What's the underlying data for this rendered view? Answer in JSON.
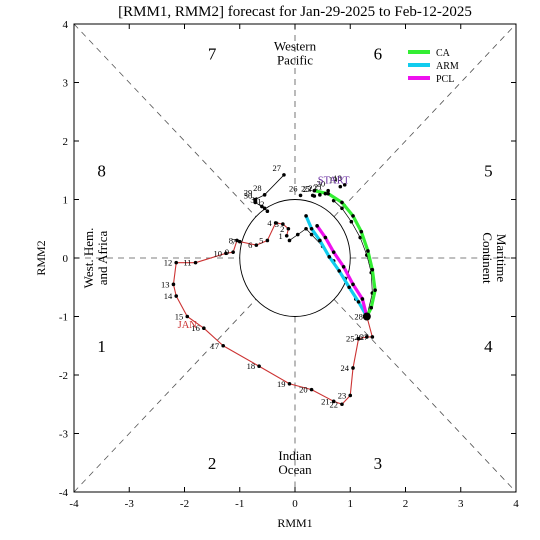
{
  "chart_data": {
    "type": "scatter",
    "title": "[RMM1, RMM2] forecast for Jan-29-2025 to Feb-12-2025",
    "xlabel": "RMM1",
    "ylabel": "RMM2",
    "xlim": [
      -4,
      4
    ],
    "ylim": [
      -4,
      4
    ],
    "xticks": [
      -4,
      -3,
      -2,
      -1,
      0,
      1,
      2,
      3,
      4
    ],
    "yticks": [
      -4,
      -3,
      -2,
      -1,
      0,
      1,
      2,
      3,
      4
    ],
    "grid": false,
    "phases": [
      {
        "label": "1",
        "x": -3.5,
        "y": -1.5
      },
      {
        "label": "2",
        "x": -1.5,
        "y": -3.5
      },
      {
        "label": "3",
        "x": 1.5,
        "y": -3.5
      },
      {
        "label": "4",
        "x": 3.5,
        "y": -1.5
      },
      {
        "label": "5",
        "x": 3.5,
        "y": 1.5
      },
      {
        "label": "6",
        "x": 1.5,
        "y": 3.5
      },
      {
        "label": "7",
        "x": -1.5,
        "y": 3.5
      },
      {
        "label": "8",
        "x": -3.5,
        "y": 1.5
      }
    ],
    "regions": [
      {
        "lines": [
          "Western",
          "Pacific"
        ],
        "x": 0,
        "y": 3.5,
        "rotate": 0
      },
      {
        "lines": [
          "Indian",
          "Ocean"
        ],
        "x": 0,
        "y": -3.5,
        "rotate": 0
      },
      {
        "lines": [
          "West. Hem.",
          "and Africa"
        ],
        "x": -3.6,
        "y": 0,
        "rotate": -90
      },
      {
        "lines": [
          "Maritime",
          "Continent"
        ],
        "x": 3.6,
        "y": 0,
        "rotate": 90
      }
    ],
    "annotations": [
      {
        "text": "JAN",
        "x": -1.95,
        "y": -1.2,
        "color": "#cc3333"
      },
      {
        "text": "START",
        "x": 0.7,
        "y": 1.27,
        "color": "#6a2fa0"
      }
    ],
    "legend": {
      "position": "top-right",
      "entries": [
        {
          "name": "CA",
          "color": "#33ee33"
        },
        {
          "name": "ARM",
          "color": "#11ccee"
        },
        {
          "name": "PCL",
          "color": "#ee11ee"
        }
      ]
    },
    "observed": {
      "color": "#cc3333",
      "points": [
        {
          "day": "1",
          "x": -0.15,
          "y": 0.38
        },
        {
          "day": "2",
          "x": -0.12,
          "y": 0.5
        },
        {
          "day": "3",
          "x": -0.22,
          "y": 0.58
        },
        {
          "day": "4",
          "x": -0.35,
          "y": 0.6
        },
        {
          "day": "5",
          "x": -0.5,
          "y": 0.3
        },
        {
          "day": "6",
          "x": -0.7,
          "y": 0.22
        },
        {
          "day": "7",
          "x": -1.0,
          "y": 0.28
        },
        {
          "day": "8",
          "x": -1.05,
          "y": 0.3
        },
        {
          "day": "9",
          "x": -1.12,
          "y": 0.1
        },
        {
          "day": "10",
          "x": -1.25,
          "y": 0.08
        },
        {
          "day": "11",
          "x": -1.8,
          "y": -0.08
        },
        {
          "day": "12",
          "x": -2.15,
          "y": -0.08
        },
        {
          "day": "13",
          "x": -2.2,
          "y": -0.45
        },
        {
          "day": "14",
          "x": -2.15,
          "y": -0.65
        },
        {
          "day": "15",
          "x": -1.95,
          "y": -1.0
        },
        {
          "day": "16",
          "x": -1.65,
          "y": -1.2
        },
        {
          "day": "17",
          "x": -1.3,
          "y": -1.5
        },
        {
          "day": "18",
          "x": -0.65,
          "y": -1.85
        },
        {
          "day": "19",
          "x": -0.1,
          "y": -2.15
        },
        {
          "day": "20",
          "x": 0.3,
          "y": -2.25
        },
        {
          "day": "21",
          "x": 0.7,
          "y": -2.45
        },
        {
          "day": "22",
          "x": 0.85,
          "y": -2.5
        },
        {
          "day": "23",
          "x": 1.0,
          "y": -2.35
        },
        {
          "day": "24",
          "x": 1.05,
          "y": -1.88
        },
        {
          "day": "25",
          "x": 1.15,
          "y": -1.38
        },
        {
          "day": "26",
          "x": 1.3,
          "y": -1.35
        },
        {
          "day": "27",
          "x": 1.4,
          "y": -1.35
        },
        {
          "day": "28",
          "x": 1.3,
          "y": -1.0
        }
      ]
    },
    "forecast_spaghetti": {
      "color": "#000000",
      "points": [
        {
          "day": "27",
          "x": -0.2,
          "y": 1.42
        },
        {
          "day": "28",
          "x": -0.55,
          "y": 1.08
        },
        {
          "day": "29",
          "x": -0.72,
          "y": 1.0
        },
        {
          "day": "30",
          "x": -0.72,
          "y": 0.95
        },
        {
          "day": "31",
          "x": -0.6,
          "y": 0.88
        },
        {
          "day": "1",
          "x": -0.55,
          "y": 0.85
        },
        {
          "day": "2",
          "x": -0.5,
          "y": 0.8
        },
        {
          "day": "25",
          "x": 0.32,
          "y": 1.07
        },
        {
          "day": "26",
          "x": 0.1,
          "y": 1.07
        },
        {
          "day": "18",
          "x": 0.9,
          "y": 1.25
        },
        {
          "day": "19",
          "x": 0.82,
          "y": 1.22
        },
        {
          "day": "20",
          "x": 0.6,
          "y": 1.15
        },
        {
          "day": "21",
          "x": 0.55,
          "y": 1.1
        },
        {
          "day": "22",
          "x": 0.45,
          "y": 1.08
        },
        {
          "day": "23",
          "x": 0.35,
          "y": 1.06
        }
      ]
    },
    "series": [
      {
        "name": "CA",
        "color": "#33ee33",
        "points": [
          {
            "x": 1.3,
            "y": -1.0
          },
          {
            "x": 1.38,
            "y": -0.85
          },
          {
            "x": 1.45,
            "y": -0.55
          },
          {
            "x": 1.4,
            "y": -0.2
          },
          {
            "x": 1.32,
            "y": 0.12
          },
          {
            "x": 1.2,
            "y": 0.45
          },
          {
            "x": 1.05,
            "y": 0.72
          },
          {
            "x": 0.85,
            "y": 0.95
          },
          {
            "x": 0.6,
            "y": 1.1
          },
          {
            "x": 0.35,
            "y": 1.15
          }
        ]
      },
      {
        "name": "ARM",
        "color": "#11ccee",
        "points": [
          {
            "x": 1.3,
            "y": -1.0
          },
          {
            "x": 1.15,
            "y": -0.75
          },
          {
            "x": 0.98,
            "y": -0.5
          },
          {
            "x": 0.8,
            "y": -0.22
          },
          {
            "x": 0.62,
            "y": 0.02
          },
          {
            "x": 0.45,
            "y": 0.3
          },
          {
            "x": 0.3,
            "y": 0.5
          },
          {
            "x": 0.2,
            "y": 0.72
          }
        ]
      },
      {
        "name": "PCL",
        "color": "#ee11ee",
        "points": [
          {
            "x": 1.3,
            "y": -1.0
          },
          {
            "x": 1.22,
            "y": -0.7
          },
          {
            "x": 1.05,
            "y": -0.45
          },
          {
            "x": 0.88,
            "y": -0.15
          },
          {
            "x": 0.7,
            "y": 0.1
          },
          {
            "x": 0.55,
            "y": 0.35
          },
          {
            "x": 0.4,
            "y": 0.55
          }
        ]
      }
    ],
    "ensemble_dots": [
      [
        {
          "x": 1.3,
          "y": -1.0
        },
        {
          "x": 1.1,
          "y": -0.7
        },
        {
          "x": 0.9,
          "y": -0.35
        },
        {
          "x": 0.7,
          "y": -0.05
        },
        {
          "x": 0.5,
          "y": 0.2
        },
        {
          "x": 0.3,
          "y": 0.4
        },
        {
          "x": 0.2,
          "y": 0.5
        },
        {
          "x": 0.05,
          "y": 0.4
        },
        {
          "x": -0.1,
          "y": 0.3
        }
      ],
      [
        {
          "x": 1.3,
          "y": -1.0
        },
        {
          "x": 1.4,
          "y": -0.6
        },
        {
          "x": 1.38,
          "y": -0.25
        },
        {
          "x": 1.3,
          "y": 0.05
        },
        {
          "x": 1.18,
          "y": 0.35
        },
        {
          "x": 1.02,
          "y": 0.62
        },
        {
          "x": 0.85,
          "y": 0.85
        },
        {
          "x": 0.7,
          "y": 0.98
        }
      ]
    ],
    "unit_circle_radius": 1
  }
}
